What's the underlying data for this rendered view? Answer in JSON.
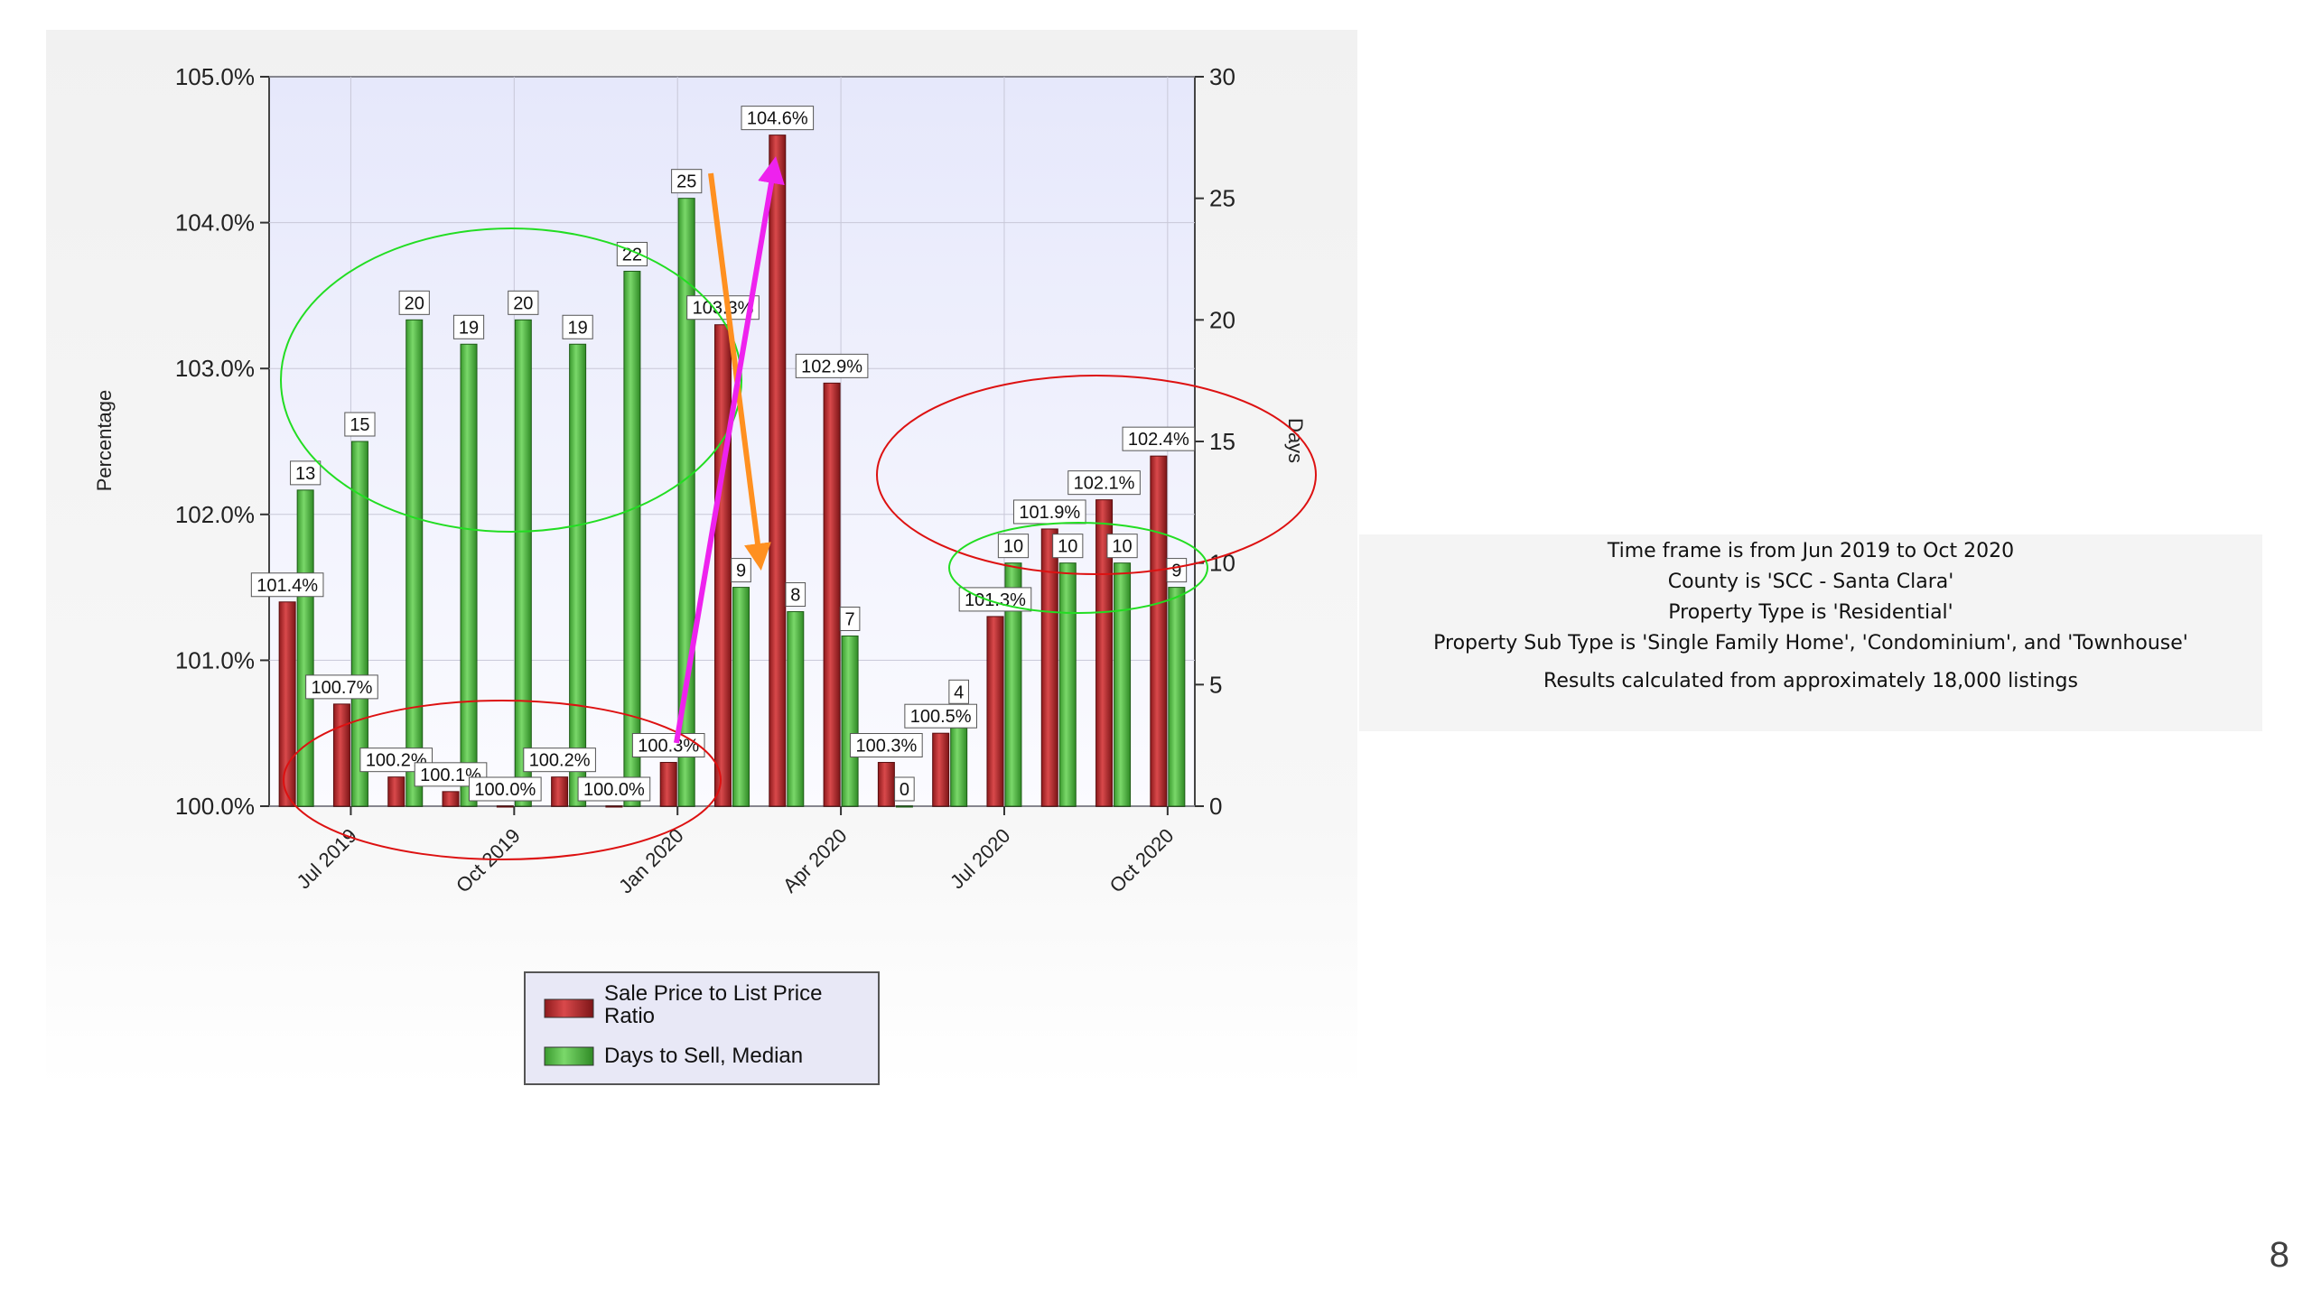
{
  "chart_data": {
    "type": "bar",
    "categories": [
      "Jun 2019",
      "Jul 2019",
      "Aug 2019",
      "Sep 2019",
      "Oct 2019",
      "Nov 2019",
      "Dec 2019",
      "Jan 2020",
      "Feb 2020",
      "Mar 2020",
      "Apr 2020",
      "May 2020",
      "Jun 2020",
      "Jul 2020",
      "Aug 2020",
      "Sep 2020",
      "Oct 2020"
    ],
    "tick_labels": [
      "Jul 2019",
      "Oct 2019",
      "Jan 2020",
      "Apr 2020",
      "Jul 2020",
      "Oct 2020"
    ],
    "series": [
      {
        "name": "Sale Price to List Price Ratio",
        "axis": "left",
        "color": "#c0282a",
        "values": [
          101.4,
          100.7,
          100.2,
          100.1,
          100.0,
          100.2,
          100.0,
          100.3,
          103.3,
          104.6,
          102.9,
          100.3,
          100.5,
          101.3,
          101.9,
          102.1,
          102.4
        ],
        "labels": [
          "101.4%",
          "100.7%",
          "100.2%",
          "100.1%",
          "100.0%",
          "100.2%",
          "100.0%",
          "100.3%",
          "103.3%",
          "104.6%",
          "102.9%",
          "100.3%",
          "100.5%",
          "101.3%",
          "101.9%",
          "102.1%",
          "102.4%"
        ]
      },
      {
        "name": "Days to Sell, Median",
        "axis": "right",
        "color": "#55bb44",
        "values": [
          13,
          15,
          20,
          19,
          20,
          19,
          22,
          25,
          9,
          8,
          7,
          0,
          4,
          10,
          10,
          10,
          9
        ],
        "labels": [
          "13",
          "15",
          "20",
          "19",
          "20",
          "19",
          "22",
          "25",
          "9",
          "8",
          "7",
          "0",
          "4",
          "10",
          "10",
          "10",
          "9"
        ]
      }
    ],
    "ylabel": "Percentage",
    "y2label": "Days",
    "ylim": [
      100.0,
      105.0
    ],
    "y_ticks": [
      "100.0%",
      "101.0%",
      "102.0%",
      "103.0%",
      "104.0%",
      "105.0%"
    ],
    "y2lim": [
      0,
      30
    ],
    "y2_ticks": [
      "0",
      "5",
      "10",
      "15",
      "20",
      "25",
      "30"
    ],
    "grid": true,
    "legend_position": "bottom",
    "annotations": [
      {
        "kind": "ellipse",
        "color": "#22dd22",
        "note": "Jul–Nov 2019 days-to-sell bars"
      },
      {
        "kind": "ellipse",
        "color": "#dd1111",
        "note": "Jun 2019–Jan 2020 sale ratio bars"
      },
      {
        "kind": "ellipse",
        "color": "#dd1111",
        "note": "Jul–Oct 2020 sale ratio bars"
      },
      {
        "kind": "ellipse",
        "color": "#22dd22",
        "note": "Jul–Oct 2020 days-to-sell bars"
      },
      {
        "kind": "arrow",
        "color": "#ff9020",
        "from": "Jan 2020 days",
        "to": "Feb 2020 days"
      },
      {
        "kind": "arrow",
        "color": "#ee22ee",
        "from": "Jan 2020 ratio",
        "to": "Mar 2020 ratio"
      }
    ]
  },
  "info": {
    "line1": "Time frame is from Jun 2019 to Oct 2020",
    "line2": "County is 'SCC - Santa Clara'",
    "line3": "Property Type is 'Residential'",
    "line4": "Property Sub Type is 'Single Family Home', 'Condominium', and 'Townhouse'",
    "line5": "Results calculated from approximately 18,000 listings"
  },
  "legend": {
    "item1_line1": "Sale Price to List Price",
    "item1_line2": "Ratio",
    "item2": "Days to Sell, Median"
  },
  "page_number": "8"
}
